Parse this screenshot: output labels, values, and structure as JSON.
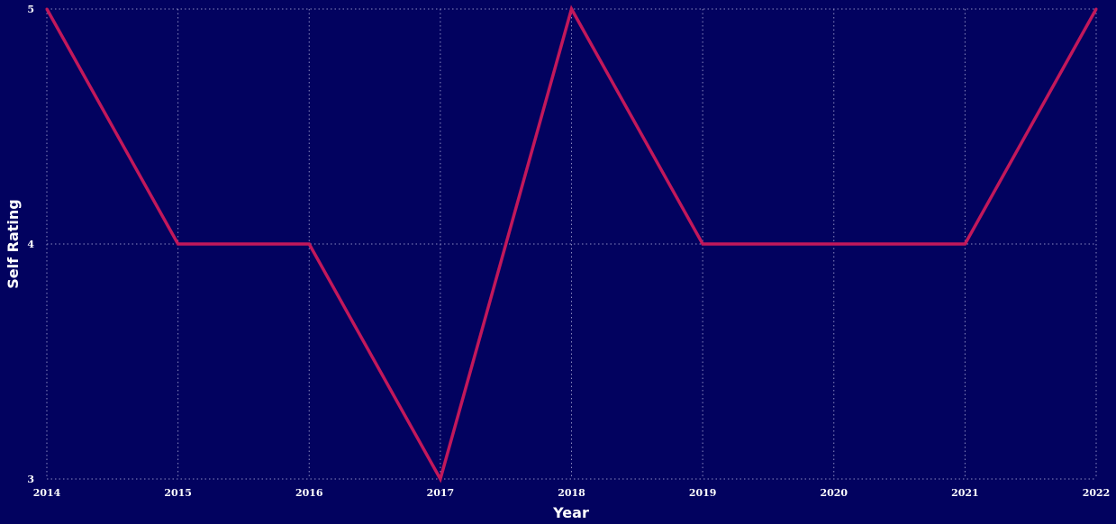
{
  "chart_data": {
    "type": "line",
    "title": "",
    "xlabel": "Year",
    "ylabel": "Self Rating",
    "x": [
      "2014",
      "2015",
      "2016",
      "2017",
      "2018",
      "2019",
      "2020",
      "2021",
      "2022"
    ],
    "y_ticks": [
      "3",
      "4",
      "5"
    ],
    "ylim": [
      3,
      5
    ],
    "series": [
      {
        "values": [
          5,
          4,
          4,
          3,
          5,
          4,
          4,
          4,
          5
        ]
      }
    ],
    "grid": true,
    "colors": {
      "background": "#02025f",
      "line": "#c2185b",
      "grid": "#8a8ac0",
      "text": "#ffffff"
    }
  }
}
